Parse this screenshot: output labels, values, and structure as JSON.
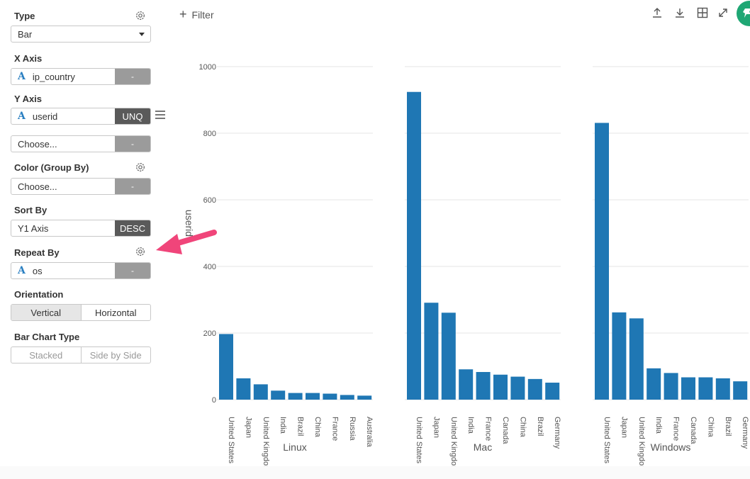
{
  "panel": {
    "type": {
      "label": "Type",
      "value": "Bar"
    },
    "x_axis": {
      "label": "X Axis",
      "field_type": "A",
      "value": "ip_country",
      "tag": "-"
    },
    "y_axis": {
      "label": "Y Axis",
      "field_type": "A",
      "value": "userid",
      "tag": "UNQ",
      "extra_value": "Choose...",
      "extra_tag": "-"
    },
    "color": {
      "label": "Color (Group By)",
      "value": "Choose...",
      "tag": "-"
    },
    "sort_by": {
      "label": "Sort By",
      "value": "Y1 Axis",
      "tag": "DESC"
    },
    "repeat_by": {
      "label": "Repeat By",
      "field_type": "A",
      "value": "os",
      "tag": "-"
    },
    "orientation": {
      "label": "Orientation",
      "options": [
        "Vertical",
        "Horizontal"
      ],
      "selected": "Vertical"
    },
    "bar_chart_type": {
      "label": "Bar Chart Type",
      "options": [
        "Stacked",
        "Side by Side"
      ]
    }
  },
  "toolbar": {
    "filter_label": "Filter",
    "icons": [
      "upload-icon",
      "download-icon",
      "grid-icon",
      "expand-icon",
      "pin-icon"
    ]
  },
  "colors": {
    "bar": "#1f77b4",
    "accent_arrow": "#f0457a",
    "green": "#1fa774"
  },
  "chart_data": {
    "type": "bar",
    "ylabel": "userid",
    "ylim": [
      0,
      1000
    ],
    "yticks": [
      0,
      200,
      400,
      600,
      800,
      1000
    ],
    "grid": true,
    "facets": [
      {
        "name": "Linux",
        "categories": [
          "United States",
          "Japan",
          "United Kingdom",
          "India",
          "Brazil",
          "China",
          "France",
          "Russia",
          "Australia"
        ],
        "values": [
          197,
          64,
          46,
          27,
          20,
          20,
          18,
          14,
          12
        ]
      },
      {
        "name": "Mac",
        "categories": [
          "United States",
          "Japan",
          "United Kingdom",
          "India",
          "France",
          "Canada",
          "China",
          "Brazil",
          "Germany"
        ],
        "values": [
          924,
          291,
          261,
          91,
          83,
          75,
          69,
          62,
          51
        ]
      },
      {
        "name": "Windows",
        "categories": [
          "United States",
          "Japan",
          "United Kingdom",
          "India",
          "France",
          "Canada",
          "China",
          "Brazil",
          "Germany"
        ],
        "values": [
          831,
          262,
          244,
          94,
          80,
          67,
          67,
          64,
          55
        ]
      }
    ]
  }
}
